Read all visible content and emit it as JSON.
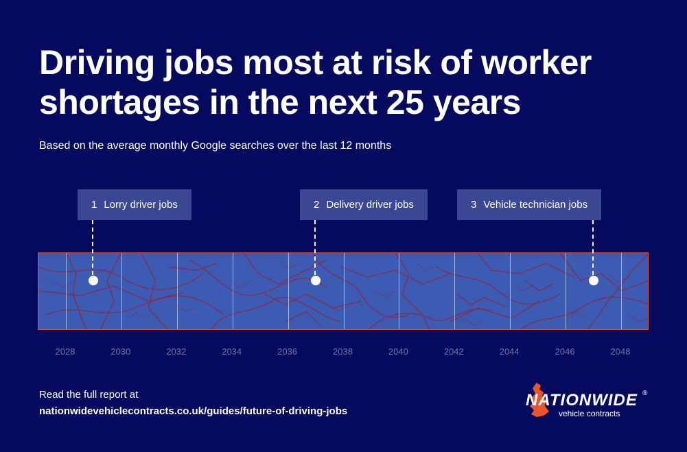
{
  "header": {
    "title": "Driving jobs most at risk of worker shortages in the next 25 years",
    "subtitle": "Based on the average monthly Google searches over the last 12 months"
  },
  "timeline": {
    "years": [
      "2028",
      "2030",
      "2032",
      "2034",
      "2036",
      "2038",
      "2040",
      "2042",
      "2044",
      "2046",
      "2048"
    ],
    "callouts": [
      {
        "rank": "1",
        "label": "Lorry driver jobs",
        "year": 2029
      },
      {
        "rank": "2",
        "label": "Delivery driver jobs",
        "year": 2037
      },
      {
        "rank": "3",
        "label": "Vehicle technician jobs",
        "year": 2047
      }
    ]
  },
  "footer": {
    "intro": "Read the full report at",
    "url": "nationwidevehiclecontracts.co.uk/guides/future-of-driving-jobs"
  },
  "logo": {
    "name": "NATIONWIDE",
    "registered": "®",
    "tagline": "vehicle contracts"
  },
  "colors": {
    "background": "#060a5e",
    "strip": "#3c5cb3",
    "roads": "#8a2a4a",
    "strip_border": "#e0543a",
    "callout_bg": "#3b4793",
    "axis_text": "#6e74a8",
    "logo_accent": "#e8562a"
  }
}
